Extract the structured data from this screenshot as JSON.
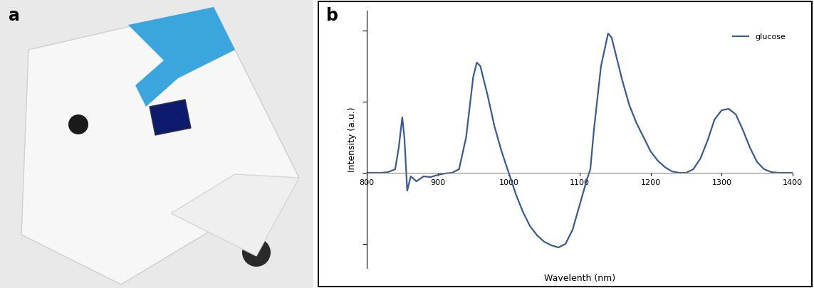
{
  "panel_labels": [
    "a",
    "b"
  ],
  "chart_data": {
    "type": "line",
    "x_label": "Wavelenth (nm)",
    "y_label": "Intensity (a.u.)",
    "x": [
      800,
      810,
      820,
      830,
      840,
      845,
      850,
      853,
      857,
      862,
      870,
      880,
      890,
      900,
      910,
      920,
      930,
      940,
      950,
      955,
      960,
      970,
      980,
      990,
      1000,
      1010,
      1020,
      1030,
      1040,
      1050,
      1060,
      1070,
      1080,
      1090,
      1100,
      1110,
      1115,
      1120,
      1130,
      1140,
      1145,
      1150,
      1160,
      1170,
      1180,
      1190,
      1200,
      1210,
      1220,
      1230,
      1240,
      1250,
      1260,
      1270,
      1280,
      1290,
      1300,
      1310,
      1320,
      1330,
      1340,
      1350,
      1360,
      1370,
      1380,
      1390,
      1400
    ],
    "series": [
      {
        "name": "glucose",
        "color": "#3d5a8c",
        "values": [
          0,
          0,
          0,
          0.01,
          0.05,
          0.35,
          0.78,
          0.5,
          -0.25,
          -0.05,
          -0.12,
          -0.05,
          -0.06,
          -0.03,
          -0.01,
          0,
          0.05,
          0.5,
          1.35,
          1.55,
          1.5,
          1.1,
          0.65,
          0.3,
          0,
          -0.3,
          -0.55,
          -0.75,
          -0.88,
          -0.97,
          -1.02,
          -1.05,
          -1.0,
          -0.8,
          -0.45,
          -0.1,
          0.05,
          0.6,
          1.5,
          1.96,
          1.9,
          1.7,
          1.3,
          0.95,
          0.7,
          0.5,
          0.3,
          0.17,
          0.08,
          0.02,
          0,
          0,
          0.05,
          0.2,
          0.45,
          0.75,
          0.88,
          0.9,
          0.82,
          0.6,
          0.35,
          0.15,
          0.05,
          0.01,
          0,
          0,
          0
        ]
      }
    ],
    "xlim": [
      800,
      1400
    ],
    "xticks": [
      800,
      900,
      1000,
      1100,
      1200,
      1300,
      1400
    ],
    "ylim": [
      -1.34,
      2.28
    ],
    "yticks": [
      -1,
      0,
      1,
      2
    ],
    "tick_labels": "x",
    "legend": "upper right",
    "grid": false
  }
}
